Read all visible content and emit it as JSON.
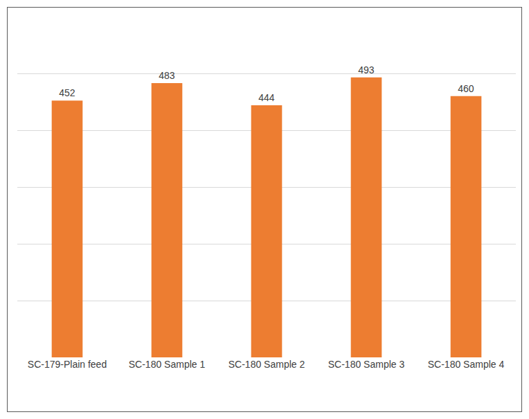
{
  "chart_data": {
    "type": "bar",
    "categories": [
      "SC-179-Plain feed",
      "SC-180 Sample 1",
      "SC-180 Sample 2",
      "SC-180 Sample 3",
      "SC-180 Sample 4"
    ],
    "values": [
      452,
      483,
      444,
      493,
      460
    ],
    "color": "#ed7d31",
    "ylim": [
      0,
      600
    ],
    "yticks": [
      0,
      100,
      200,
      300,
      400,
      500,
      600
    ],
    "grid": true,
    "data_labels": true,
    "tick_labels": "x"
  }
}
